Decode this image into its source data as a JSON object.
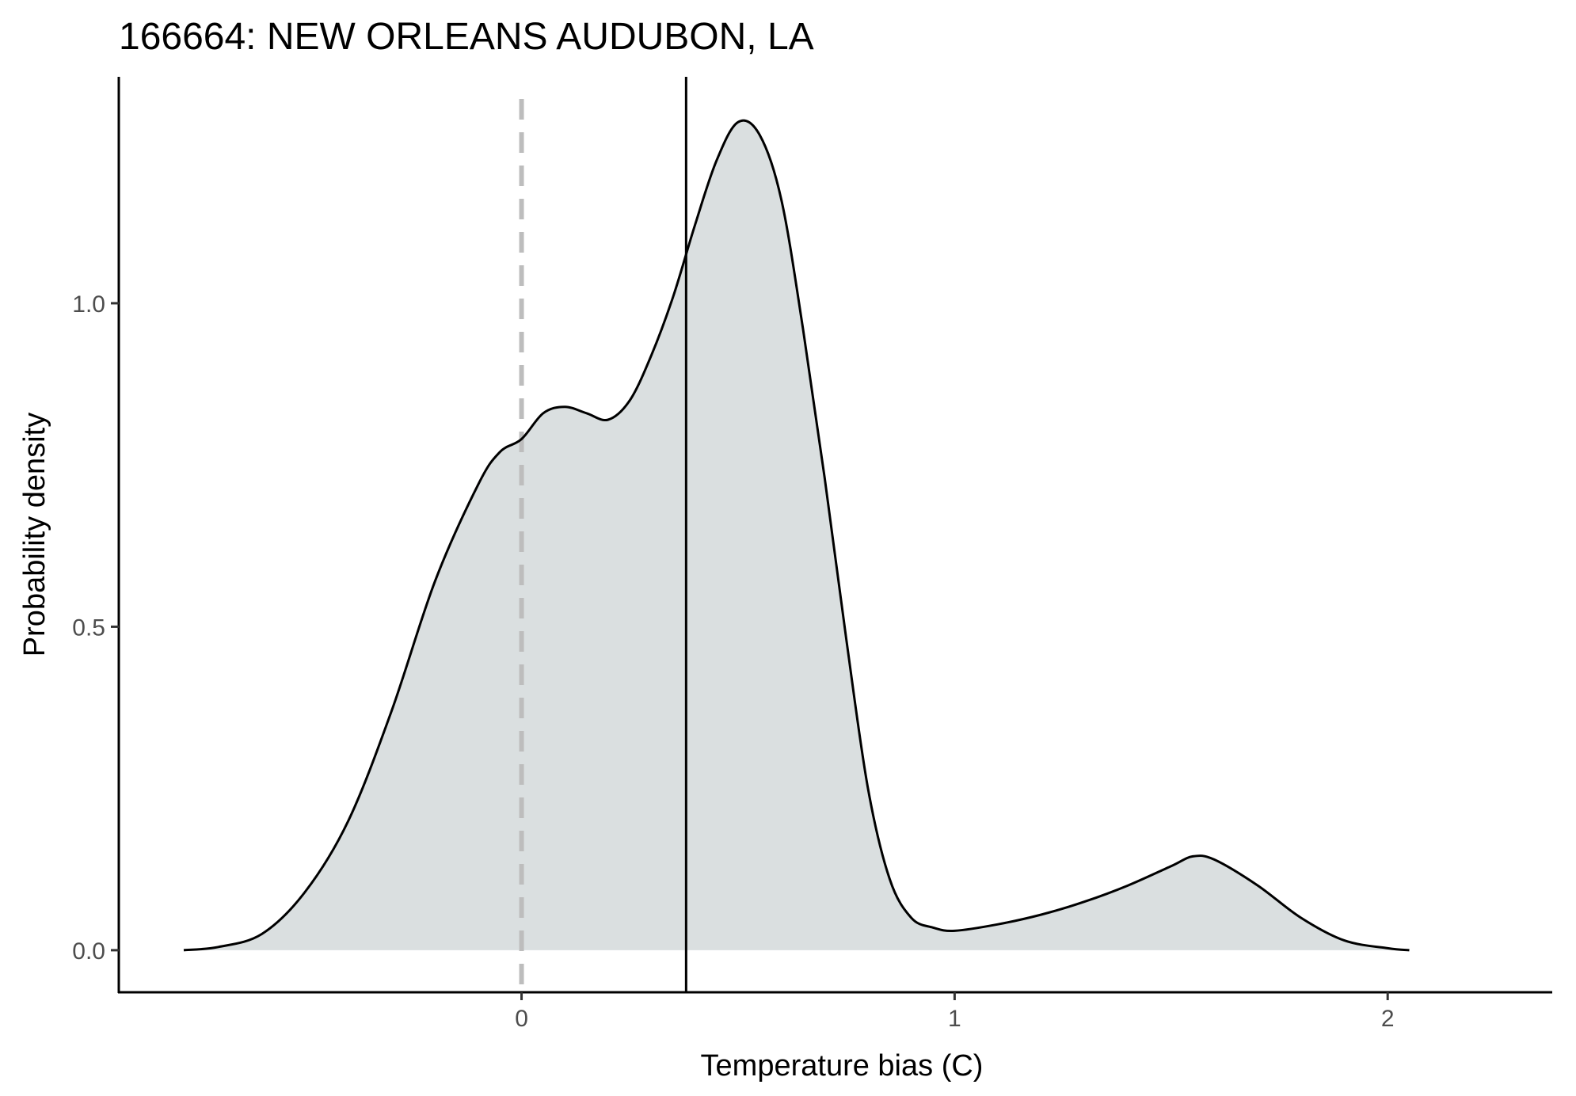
{
  "chart_data": {
    "type": "area",
    "title": "166664: NEW ORLEANS AUDUBON, LA",
    "xlabel": "Temperature bias (C)",
    "ylabel": "Probability density",
    "xlim": [
      -0.93,
      2.38
    ],
    "ylim": [
      -0.065,
      1.35
    ],
    "x_ticks": [
      0,
      1,
      2
    ],
    "x_tick_labels": [
      "0",
      "1",
      "2"
    ],
    "y_ticks": [
      0.0,
      0.5,
      1.0
    ],
    "y_tick_labels": [
      "0.0",
      "0.5",
      "1.0"
    ],
    "grid": false,
    "legend": "none",
    "fill_color": "#dadfe0",
    "line_color": "#000000",
    "reference_line": {
      "x": 0,
      "style": "dashed",
      "color": "#bdbdbd"
    },
    "mean_line": {
      "x": 0.38,
      "style": "solid",
      "color": "#000000"
    },
    "series": [
      {
        "x": [
          -0.78,
          -0.7,
          -0.6,
          -0.5,
          -0.4,
          -0.3,
          -0.2,
          -0.1,
          -0.05,
          0.0,
          0.05,
          0.1,
          0.15,
          0.2,
          0.25,
          0.3,
          0.35,
          0.4,
          0.45,
          0.5,
          0.55,
          0.6,
          0.65,
          0.7,
          0.75,
          0.8,
          0.85,
          0.9,
          0.95,
          1.0,
          1.1,
          1.2,
          1.3,
          1.4,
          1.5,
          1.55,
          1.6,
          1.7,
          1.8,
          1.9,
          2.0,
          2.05
        ],
        "values": [
          0.0,
          0.005,
          0.025,
          0.09,
          0.2,
          0.37,
          0.57,
          0.72,
          0.77,
          0.79,
          0.83,
          0.84,
          0.83,
          0.82,
          0.85,
          0.92,
          1.01,
          1.12,
          1.22,
          1.28,
          1.26,
          1.16,
          0.96,
          0.73,
          0.48,
          0.25,
          0.11,
          0.05,
          0.035,
          0.03,
          0.04,
          0.055,
          0.075,
          0.1,
          0.13,
          0.145,
          0.14,
          0.1,
          0.05,
          0.015,
          0.003,
          0.0
        ]
      }
    ]
  }
}
